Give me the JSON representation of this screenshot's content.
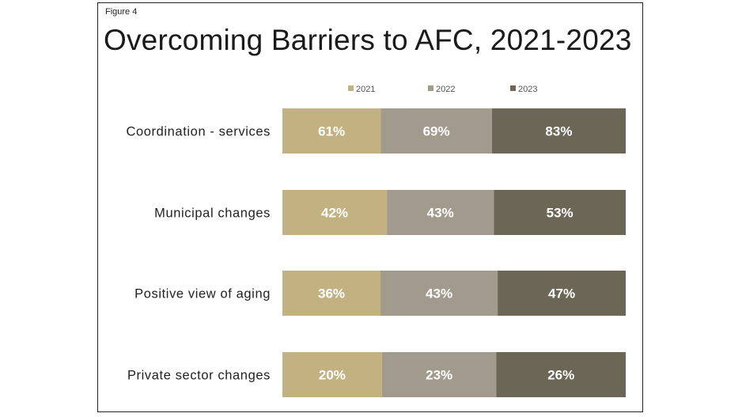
{
  "figure_label": "Figure 4",
  "title": "Overcoming Barriers to AFC, 2021-2023",
  "chart_data": {
    "type": "bar",
    "stacked": true,
    "orientation": "horizontal",
    "title": "Overcoming Barriers to AFC, 2021-2023",
    "categories": [
      "Coordination - services",
      "Municipal changes",
      "Positive view of aging",
      "Private sector changes"
    ],
    "series": [
      {
        "name": "2021",
        "values": [
          61,
          42,
          36,
          20
        ],
        "labels": [
          "61%",
          "42%",
          "36%",
          "20%"
        ],
        "color": "#c2b282"
      },
      {
        "name": "2022",
        "values": [
          69,
          43,
          43,
          23
        ],
        "labels": [
          "69%",
          "43%",
          "43%",
          "23%"
        ],
        "color": "#a39a8e"
      },
      {
        "name": "2023",
        "values": [
          83,
          53,
          47,
          26
        ],
        "labels": [
          "83%",
          "53%",
          "47%",
          "26%"
        ],
        "color": "#6b6656"
      }
    ],
    "legend_position": "top",
    "grid": false,
    "label_color": "#ffffff"
  }
}
